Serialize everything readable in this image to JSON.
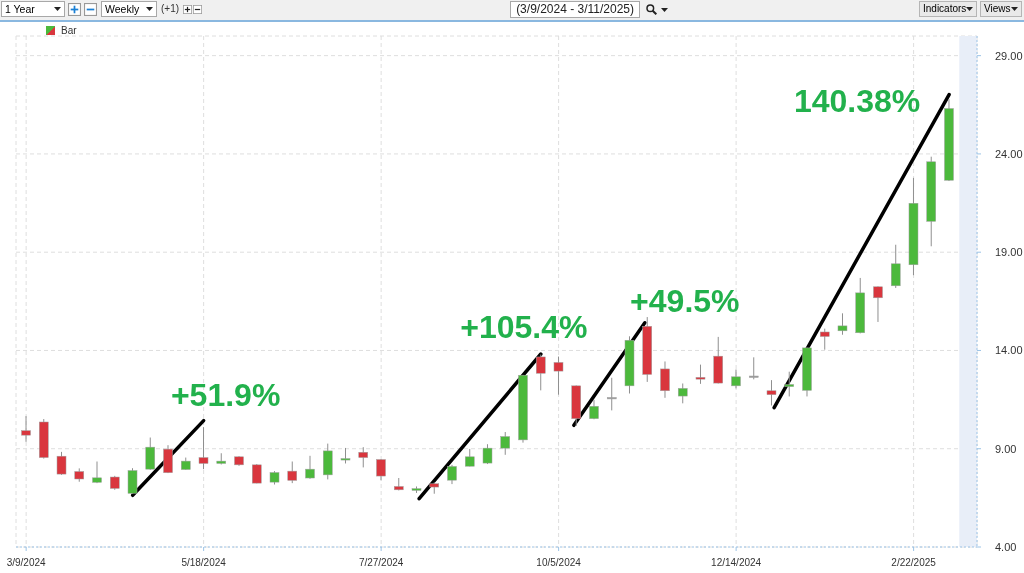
{
  "chart_data": {
    "type": "candlestick",
    "title": "(3/9/2024 - 3/11/2025)",
    "x": [
      "2024-03-09",
      "2024-03-16",
      "2024-03-23",
      "2024-03-30",
      "2024-04-06",
      "2024-04-13",
      "2024-04-20",
      "2024-04-27",
      "2024-05-04",
      "2024-05-11",
      "2024-05-18",
      "2024-05-25",
      "2024-06-01",
      "2024-06-08",
      "2024-06-15",
      "2024-06-22",
      "2024-06-29",
      "2024-07-06",
      "2024-07-13",
      "2024-07-20",
      "2024-07-27",
      "2024-08-03",
      "2024-08-10",
      "2024-08-17",
      "2024-08-24",
      "2024-08-31",
      "2024-09-07",
      "2024-09-14",
      "2024-09-21",
      "2024-09-28",
      "2024-10-05",
      "2024-10-12",
      "2024-10-19",
      "2024-10-26",
      "2024-11-02",
      "2024-11-09",
      "2024-11-16",
      "2024-11-23",
      "2024-11-30",
      "2024-12-07",
      "2024-12-14",
      "2024-12-21",
      "2024-12-28",
      "2025-01-04",
      "2025-01-11",
      "2025-01-18",
      "2025-01-25",
      "2025-02-01",
      "2025-02-08",
      "2025-02-15",
      "2025-02-22",
      "2025-03-01",
      "2025-03-08"
    ],
    "series": [
      {
        "name": "Bar",
        "ohlc": [
          [
            9.92,
            10.66,
            9.35,
            9.69
          ],
          [
            10.36,
            10.51,
            8.5,
            8.55
          ],
          [
            8.62,
            8.84,
            7.67,
            7.71
          ],
          [
            7.84,
            8.0,
            7.32,
            7.46
          ],
          [
            7.29,
            8.35,
            7.25,
            7.52
          ],
          [
            7.56,
            7.62,
            6.91,
            6.98
          ],
          [
            6.73,
            8.01,
            6.71,
            7.89
          ],
          [
            7.96,
            9.57,
            7.93,
            9.08
          ],
          [
            8.98,
            9.18,
            7.76,
            7.78
          ],
          [
            7.94,
            8.55,
            7.93,
            8.37
          ],
          [
            8.55,
            10.1,
            7.96,
            8.25
          ],
          [
            8.25,
            8.77,
            8.2,
            8.37
          ],
          [
            8.59,
            8.62,
            8.13,
            8.18
          ],
          [
            8.18,
            8.22,
            7.24,
            7.25
          ],
          [
            7.3,
            7.86,
            7.18,
            7.79
          ],
          [
            7.86,
            8.35,
            7.25,
            7.39
          ],
          [
            7.51,
            8.64,
            7.47,
            7.96
          ],
          [
            7.67,
            9.26,
            7.44,
            8.89
          ],
          [
            8.43,
            9.04,
            8.25,
            8.5
          ],
          [
            8.82,
            9.08,
            8.05,
            8.55
          ],
          [
            8.45,
            8.47,
            7.4,
            7.61
          ],
          [
            7.08,
            7.51,
            6.88,
            6.91
          ],
          [
            6.88,
            7.08,
            6.75,
            6.97
          ],
          [
            7.22,
            7.29,
            6.71,
            7.05
          ],
          [
            7.4,
            8.18,
            7.2,
            8.1
          ],
          [
            8.11,
            8.99,
            8.1,
            8.59
          ],
          [
            8.27,
            9.23,
            8.22,
            9.03
          ],
          [
            9.03,
            9.85,
            8.69,
            9.62
          ],
          [
            9.45,
            12.76,
            9.31,
            12.74
          ],
          [
            13.67,
            13.79,
            11.97,
            12.84
          ],
          [
            13.39,
            13.69,
            11.75,
            12.95
          ],
          [
            12.2,
            12.22,
            10.16,
            10.53
          ],
          [
            10.53,
            11.49,
            10.5,
            11.16
          ],
          [
            11.56,
            12.61,
            10.95,
            11.61
          ],
          [
            12.2,
            14.72,
            11.81,
            14.52
          ],
          [
            15.23,
            15.7,
            12.4,
            12.78
          ],
          [
            13.06,
            13.44,
            11.59,
            11.95
          ],
          [
            11.68,
            12.32,
            11.31,
            12.07
          ],
          [
            12.63,
            13.28,
            12.3,
            12.54
          ],
          [
            13.71,
            14.69,
            12.32,
            12.34
          ],
          [
            12.2,
            13.03,
            12.07,
            12.66
          ],
          [
            12.64,
            13.65,
            12.53,
            12.7
          ],
          [
            11.95,
            12.49,
            11.2,
            11.75
          ],
          [
            12.16,
            12.92,
            11.66,
            12.27
          ],
          [
            11.97,
            14.15,
            11.66,
            14.13
          ],
          [
            14.94,
            15.11,
            14.04,
            14.71
          ],
          [
            15.0,
            15.89,
            14.8,
            15.25
          ],
          [
            14.9,
            17.69,
            14.87,
            16.93
          ],
          [
            17.24,
            17.26,
            15.45,
            16.68
          ],
          [
            17.29,
            19.38,
            17.18,
            18.41
          ],
          [
            18.36,
            22.78,
            17.83,
            21.49
          ],
          [
            20.57,
            23.86,
            19.3,
            23.6
          ],
          [
            22.66,
            26.79,
            22.62,
            26.31
          ]
        ],
        "colors": [
          "#d9363e",
          "#d9363e",
          "#d9363e",
          "#d9363e",
          "#4cb93c",
          "#d9363e",
          "#4cb93c",
          "#4cb93c",
          "#d9363e",
          "#4cb93c",
          "#d9363e",
          "#4cb93c",
          "#d9363e",
          "#d9363e",
          "#4cb93c",
          "#d9363e",
          "#4cb93c",
          "#4cb93c",
          "#4cb93c",
          "#d9363e",
          "#d9363e",
          "#d9363e",
          "#4cb93c",
          "#d9363e",
          "#4cb93c",
          "#4cb93c",
          "#4cb93c",
          "#4cb93c",
          "#4cb93c",
          "#d9363e",
          "#d9363e",
          "#d9363e",
          "#4cb93c",
          "#9a9a9a",
          "#4cb93c",
          "#d9363e",
          "#d9363e",
          "#4cb93c",
          "#d9363e",
          "#d9363e",
          "#4cb93c",
          "#9a9a9a",
          "#d9363e",
          "#4cb93c",
          "#4cb93c",
          "#d9363e",
          "#4cb93c",
          "#4cb93c",
          "#d9363e",
          "#4cb93c",
          "#4cb93c",
          "#4cb93c",
          "#4cb93c"
        ]
      },
      {
        "type": "line",
        "color": "#000000",
        "x": [
          "2024-04-20",
          "2024-05-18"
        ],
        "values": [
          6.63,
          10.43
        ]
      },
      {
        "type": "line",
        "color": "#000000",
        "x": [
          "2024-08-11",
          "2024-09-28"
        ],
        "values": [
          6.46,
          13.82
        ]
      },
      {
        "type": "line",
        "color": "#000000",
        "x": [
          "2024-10-11",
          "2024-11-08"
        ],
        "values": [
          10.19,
          15.41
        ]
      },
      {
        "type": "line",
        "color": "#000000",
        "x": [
          "2024-12-29",
          "2025-03-08"
        ],
        "values": [
          11.09,
          27.02
        ]
      }
    ],
    "xlim": [
      "2024-03-05",
      "2025-03-19"
    ],
    "xticks": [
      {
        "value": "2024-03-09",
        "label": "3/9/2024"
      },
      {
        "value": "2024-05-18",
        "label": "5/18/2024"
      },
      {
        "value": "2024-07-27",
        "label": "7/27/2024"
      },
      {
        "value": "2024-10-05",
        "label": "10/5/2024"
      },
      {
        "value": "2024-12-14",
        "label": "12/14/2024"
      },
      {
        "value": "2025-02-22",
        "label": "2/22/2025"
      }
    ],
    "ylim": [
      4,
      30
    ],
    "yticks": [
      {
        "value": 4,
        "label": "4.00"
      },
      {
        "value": 9,
        "label": "9.00"
      },
      {
        "value": 14,
        "label": "14.00"
      },
      {
        "value": 19,
        "label": "19.00"
      },
      {
        "value": 24,
        "label": "24.00"
      },
      {
        "value": 29,
        "label": "29.00"
      }
    ],
    "bands": [
      {
        "axis": "x",
        "from": "2025-03-12",
        "to": "2025-03-19",
        "color": "#e8eef8"
      }
    ],
    "annotations": [
      "1 Year",
      "Weekly",
      "(+1)",
      "Indicators",
      "Views",
      "+51.9%",
      "+105.4%",
      "+49.5%",
      "140.38%"
    ],
    "grid": true,
    "legend": "top left"
  }
}
